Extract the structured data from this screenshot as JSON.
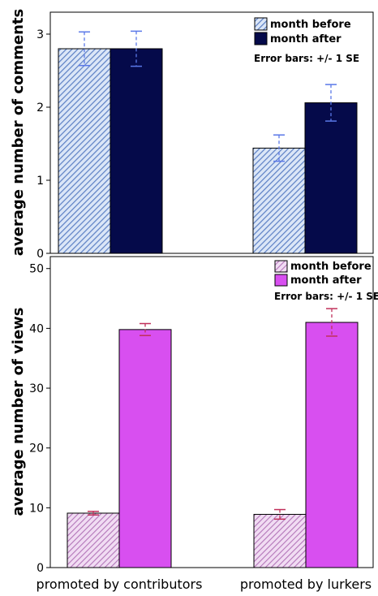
{
  "chart_data": [
    {
      "type": "bar",
      "categories": [
        "promoted by contributors",
        "promoted by lurkers"
      ],
      "ylabel": "average number of comments",
      "ylim": [
        0,
        3.3
      ],
      "yticks": [
        0,
        1,
        2,
        3
      ],
      "series": [
        {
          "name": "month before",
          "values": [
            2.8,
            1.44
          ],
          "se": [
            0.23,
            0.18
          ],
          "color": "#a9c0e8",
          "hatch": true,
          "errcolor": "#5a78e8"
        },
        {
          "name": "month after",
          "values": [
            2.8,
            2.06
          ],
          "se": [
            0.24,
            0.25
          ],
          "color": "#050a4a",
          "hatch": false,
          "errcolor": "#5a78e8"
        }
      ],
      "note": "Error bars: +/- 1 SE",
      "legend": "top-right"
    },
    {
      "type": "bar",
      "categories": [
        "promoted by contributors",
        "promoted by lurkers"
      ],
      "xlabel_ticks": [
        "promoted by contributors",
        "promoted by lurkers"
      ],
      "ylabel": "average number of views",
      "ylim": [
        0,
        52
      ],
      "yticks": [
        0,
        10,
        20,
        30,
        40,
        50
      ],
      "series": [
        {
          "name": "month before",
          "values": [
            9.1,
            8.9
          ],
          "se": [
            0.3,
            0.8
          ],
          "color": "#d6a0dc",
          "hatch": true,
          "errcolor": "#c0305a"
        },
        {
          "name": "month after",
          "values": [
            39.8,
            41.0
          ],
          "se": [
            1.0,
            2.3
          ],
          "color": "#d84ff0",
          "hatch": false,
          "errcolor": "#c0305a"
        }
      ],
      "note": "Error bars: +/- 1 SE",
      "legend": "top-right"
    }
  ]
}
